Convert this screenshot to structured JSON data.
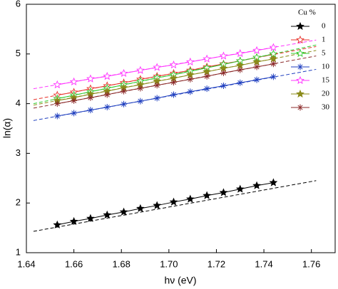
{
  "chart_data": {
    "type": "line",
    "x_label": "hν (eV)",
    "y_label": "ln(α)",
    "legend_title": "Cu %",
    "legend": "upper right",
    "xlim": [
      1.64,
      1.77
    ],
    "ylim": [
      1,
      6
    ],
    "xticks": [
      1.64,
      1.66,
      1.68,
      {
        "value": 1.7,
        "label": "1.70"
      },
      1.72,
      1.74,
      1.76
    ],
    "yticks": [
      1,
      2,
      3,
      4,
      5,
      6
    ],
    "x": [
      1.653,
      1.66,
      1.667,
      1.674,
      1.681,
      1.688,
      1.695,
      1.702,
      1.709,
      1.716,
      1.723,
      1.73,
      1.737,
      1.744
    ],
    "fit_x": [
      1.643,
      1.762
    ],
    "series": [
      {
        "name": "0",
        "color": "#000000",
        "marker": "star-filled",
        "values": [
          1.56,
          1.63,
          1.69,
          1.76,
          1.82,
          1.89,
          1.95,
          2.02,
          2.08,
          2.15,
          2.21,
          2.28,
          2.35,
          2.41
        ],
        "fit": [
          1.43,
          2.45
        ]
      },
      {
        "name": "1",
        "color": "#e8312a",
        "marker": "star-open",
        "values": [
          4.17,
          4.23,
          4.3,
          4.36,
          4.42,
          4.49,
          4.55,
          4.61,
          4.67,
          4.74,
          4.8,
          4.86,
          4.93,
          4.99
        ],
        "fit": [
          4.08,
          5.15
        ]
      },
      {
        "name": "5",
        "color": "#2ecc2e",
        "marker": "star-open",
        "values": [
          4.1,
          4.17,
          4.24,
          4.31,
          4.38,
          4.45,
          4.52,
          4.58,
          4.65,
          4.72,
          4.79,
          4.86,
          4.93,
          5.0
        ],
        "fit": [
          4.0,
          5.18
        ]
      },
      {
        "name": "10",
        "color": "#1f3fbf",
        "marker": "asterisk",
        "values": [
          3.75,
          3.81,
          3.87,
          3.93,
          3.99,
          4.05,
          4.11,
          4.18,
          4.24,
          4.3,
          4.36,
          4.42,
          4.48,
          4.54
        ],
        "fit": [
          3.66,
          4.69
        ]
      },
      {
        "name": "15",
        "color": "#ff33ff",
        "marker": "star-open",
        "values": [
          4.38,
          4.44,
          4.5,
          4.55,
          4.61,
          4.67,
          4.73,
          4.78,
          4.84,
          4.9,
          4.96,
          5.01,
          5.07,
          5.13
        ],
        "fit": [
          4.3,
          5.28
        ]
      },
      {
        "name": "20",
        "color": "#8b8b1a",
        "marker": "star-filled",
        "values": [
          4.06,
          4.12,
          4.19,
          4.25,
          4.32,
          4.38,
          4.45,
          4.51,
          4.58,
          4.64,
          4.71,
          4.77,
          4.84,
          4.9
        ],
        "fit": [
          3.97,
          5.07
        ]
      },
      {
        "name": "30",
        "color": "#8b2a2a",
        "marker": "asterisk",
        "values": [
          4.0,
          4.06,
          4.12,
          4.18,
          4.25,
          4.31,
          4.37,
          4.43,
          4.49,
          4.55,
          4.62,
          4.68,
          4.74,
          4.8
        ],
        "fit": [
          3.91,
          4.96
        ]
      }
    ]
  }
}
